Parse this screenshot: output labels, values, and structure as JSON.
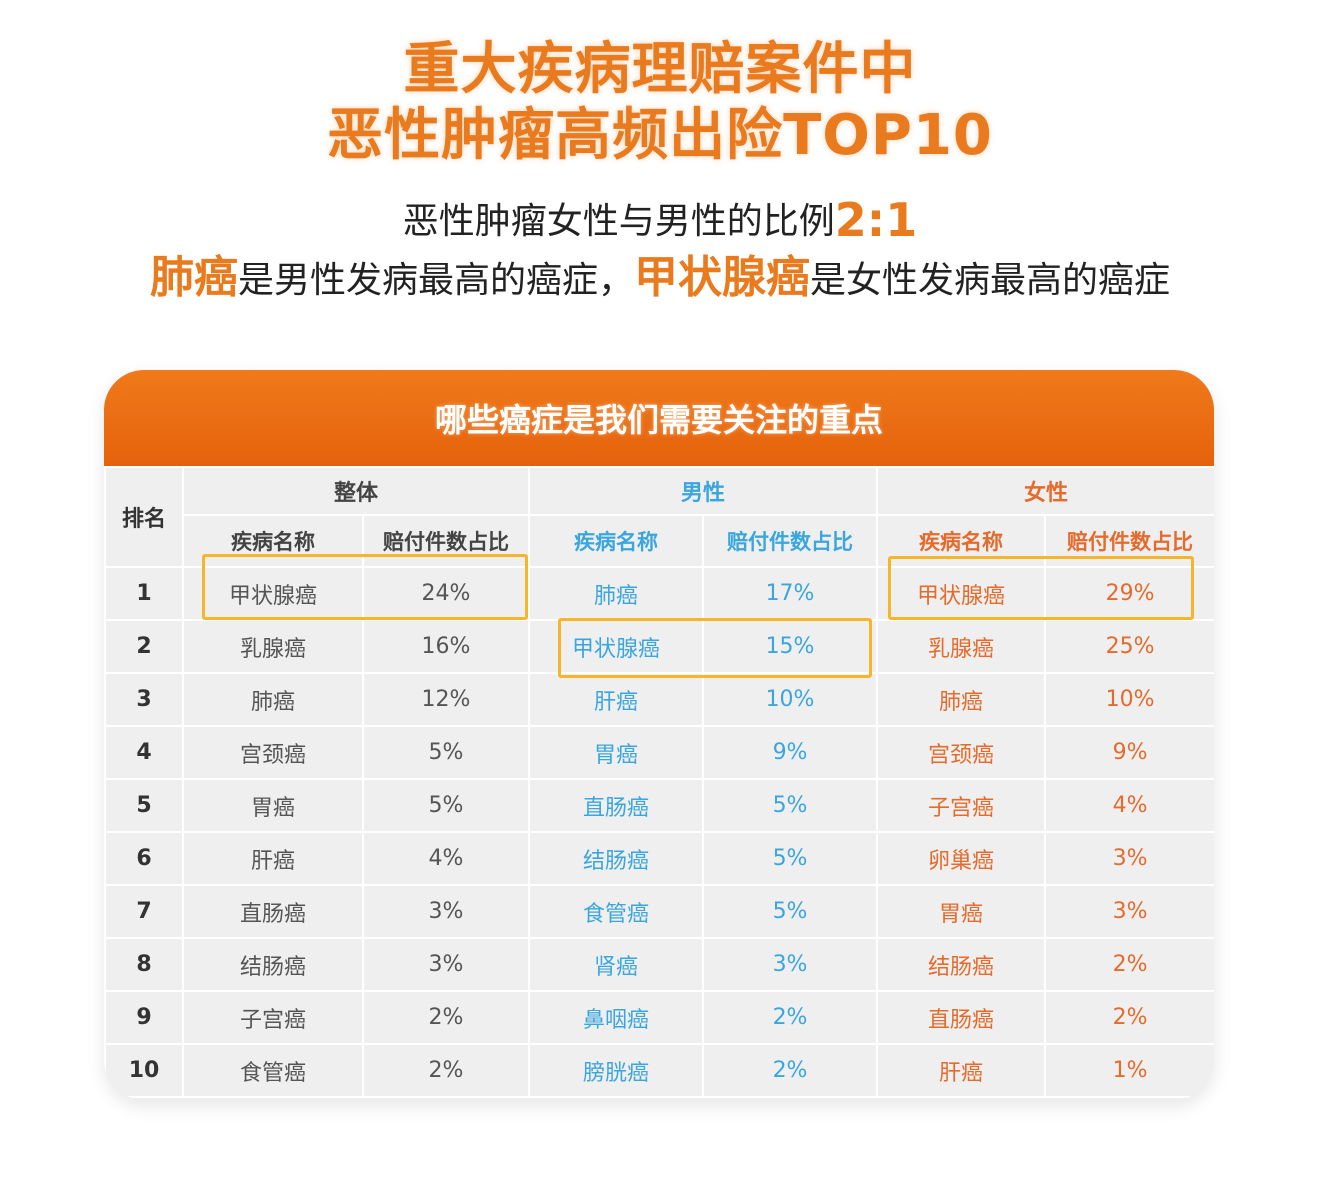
{
  "header": {
    "title_line1": "重大疾病理赔案件中",
    "title_line2": "恶性肿瘤高频出险TOP10",
    "ratio_text": "恶性肿瘤女性与男性的比例",
    "ratio_value": "2:1",
    "male_top": "肺癌",
    "male_top_suffix": "是男性发病最高的癌症，",
    "female_top": "甲状腺癌",
    "female_top_suffix": "是女性发病最高的癌症"
  },
  "card": {
    "banner": "哪些癌症是我们需要关注的重点"
  },
  "colors": {
    "accent": "#e97a1e",
    "banner": "#e5620c",
    "male": "#3ba6de",
    "female": "#e46b2c",
    "highlight_box": "#f6b52a"
  },
  "chart_data": {
    "type": "table",
    "title": "哪些癌症是我们需要关注的重点",
    "rank_header": "排名",
    "groups": [
      {
        "name": "整体",
        "columns": [
          "疾病名称",
          "赔付件数占比"
        ],
        "rows": [
          [
            "甲状腺癌",
            "24%"
          ],
          [
            "乳腺癌",
            "16%"
          ],
          [
            "肺癌",
            "12%"
          ],
          [
            "宫颈癌",
            "5%"
          ],
          [
            "胃癌",
            "5%"
          ],
          [
            "肝癌",
            "4%"
          ],
          [
            "直肠癌",
            "3%"
          ],
          [
            "结肠癌",
            "3%"
          ],
          [
            "子宫癌",
            "2%"
          ],
          [
            "食管癌",
            "2%"
          ]
        ]
      },
      {
        "name": "男性",
        "columns": [
          "疾病名称",
          "赔付件数占比"
        ],
        "rows": [
          [
            "肺癌",
            "17%"
          ],
          [
            "甲状腺癌",
            "15%"
          ],
          [
            "肝癌",
            "10%"
          ],
          [
            "胃癌",
            "9%"
          ],
          [
            "直肠癌",
            "5%"
          ],
          [
            "结肠癌",
            "5%"
          ],
          [
            "食管癌",
            "5%"
          ],
          [
            "肾癌",
            "3%"
          ],
          [
            "鼻咽癌",
            "2%"
          ],
          [
            "膀胱癌",
            "2%"
          ]
        ]
      },
      {
        "name": "女性",
        "columns": [
          "疾病名称",
          "赔付件数占比"
        ],
        "rows": [
          [
            "甲状腺癌",
            "29%"
          ],
          [
            "乳腺癌",
            "25%"
          ],
          [
            "肺癌",
            "10%"
          ],
          [
            "宫颈癌",
            "9%"
          ],
          [
            "子宫癌",
            "4%"
          ],
          [
            "卵巢癌",
            "3%"
          ],
          [
            "胃癌",
            "3%"
          ],
          [
            "结肠癌",
            "2%"
          ],
          [
            "直肠癌",
            "2%"
          ],
          [
            "肝癌",
            "1%"
          ]
        ]
      }
    ],
    "ranks": [
      "1",
      "2",
      "3",
      "4",
      "5",
      "6",
      "7",
      "8",
      "9",
      "10"
    ],
    "highlighted": [
      {
        "group": "整体",
        "rank": 1
      },
      {
        "group": "男性",
        "rank": 2
      },
      {
        "group": "女性",
        "rank": 1
      }
    ]
  }
}
